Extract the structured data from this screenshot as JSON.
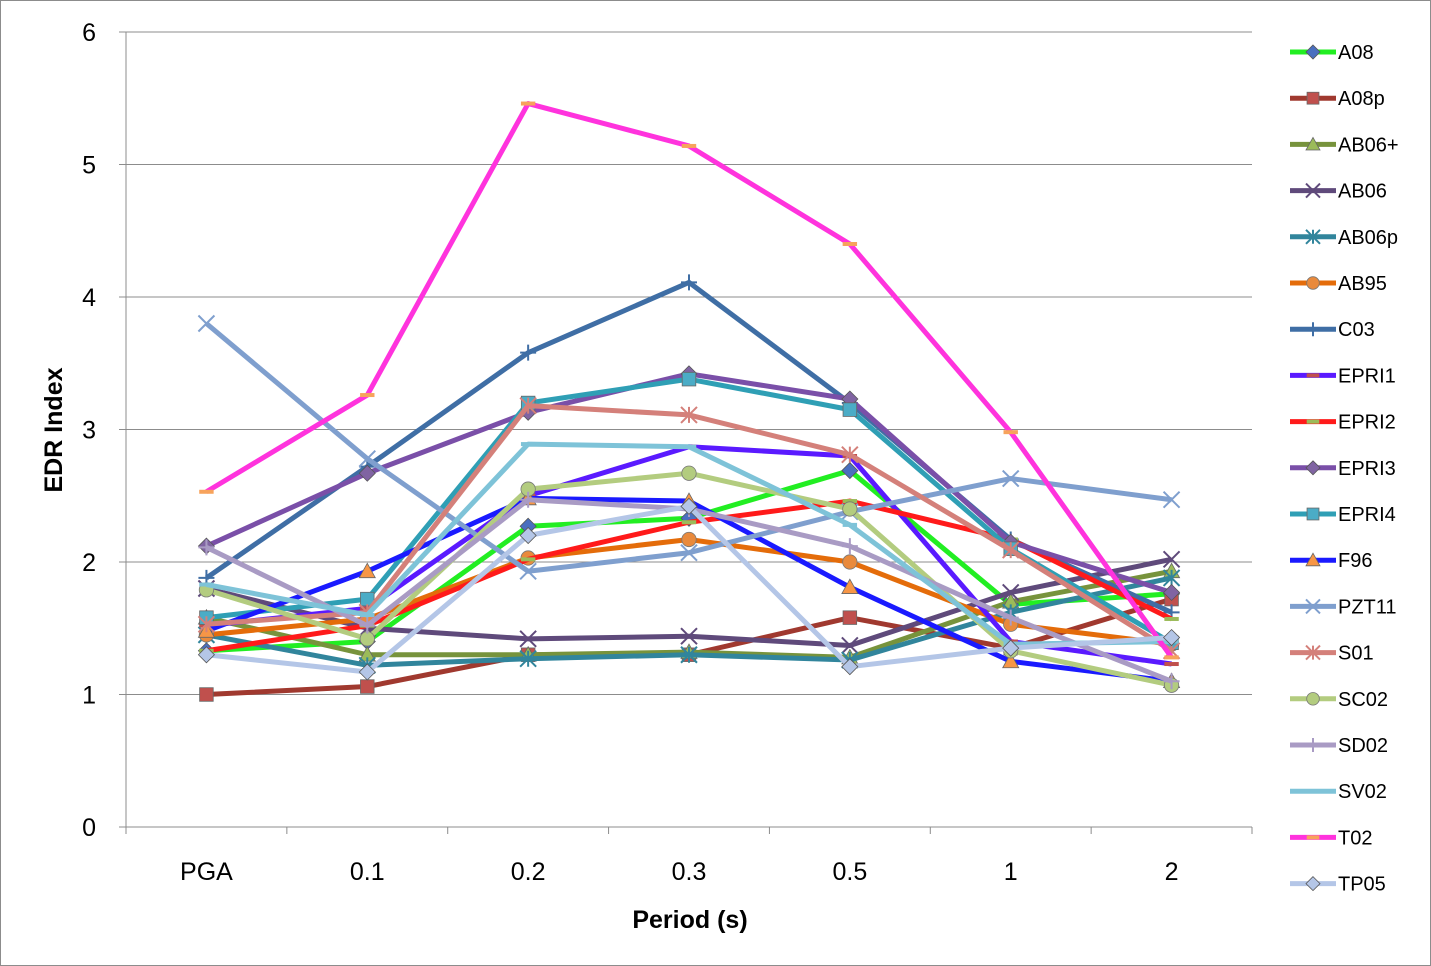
{
  "chart_data": {
    "type": "line",
    "xlabel": "Period (s)",
    "ylabel": "EDR Index",
    "categories": [
      "PGA",
      "0.1",
      "0.2",
      "0.3",
      "0.5",
      "1",
      "2"
    ],
    "ylim": [
      0,
      6
    ],
    "yticks": [
      "0",
      "1",
      "2",
      "3",
      "4",
      "5",
      "6"
    ],
    "grid": "horizontal",
    "legend_position": "right",
    "series": [
      {
        "name": "A08",
        "color": "#22ee22",
        "marker": "diamond",
        "marker_color": "#4a6fbf",
        "values": [
          1.33,
          1.4,
          2.27,
          2.33,
          2.69,
          1.68,
          1.76
        ]
      },
      {
        "name": "A08p",
        "color": "#a0392f",
        "marker": "square",
        "marker_color": "#c0504d",
        "values": [
          1.0,
          1.06,
          1.3,
          1.3,
          1.58,
          1.35,
          1.72
        ]
      },
      {
        "name": "AB06+",
        "color": "#77933c",
        "marker": "triangle",
        "marker_color": "#9bbb59",
        "values": [
          1.58,
          1.3,
          1.3,
          1.32,
          1.28,
          1.7,
          1.93
        ]
      },
      {
        "name": "AB06",
        "color": "#5f4a7b",
        "marker": "x",
        "marker_color": "#5f4a7b",
        "values": [
          1.8,
          1.5,
          1.42,
          1.44,
          1.37,
          1.77,
          2.02
        ]
      },
      {
        "name": "AB06p",
        "color": "#31859c",
        "marker": "asterisk",
        "marker_color": "#31859c",
        "values": [
          1.45,
          1.22,
          1.27,
          1.3,
          1.26,
          1.62,
          1.88
        ]
      },
      {
        "name": "AB95",
        "color": "#e46c0a",
        "marker": "circle",
        "marker_color": "#e98a3c",
        "values": [
          1.45,
          1.57,
          2.03,
          2.17,
          2.0,
          1.53,
          1.38
        ]
      },
      {
        "name": "C03",
        "color": "#3f6ea5",
        "marker": "plus",
        "marker_color": "#3f6ea5",
        "values": [
          1.88,
          2.72,
          3.58,
          4.11,
          3.2,
          2.17,
          1.62
        ]
      },
      {
        "name": "EPRI1",
        "color": "#5a1aff",
        "marker": "dash",
        "marker_color": "#c0504d",
        "values": [
          1.52,
          1.65,
          2.5,
          2.87,
          2.8,
          1.4,
          1.23
        ]
      },
      {
        "name": "EPRI2",
        "color": "#ff1a1a",
        "marker": "dash",
        "marker_color": "#9bbb59",
        "values": [
          1.33,
          1.52,
          2.02,
          2.3,
          2.46,
          2.17,
          1.57
        ]
      },
      {
        "name": "EPRI3",
        "color": "#7a4fa8",
        "marker": "diamond",
        "marker_color": "#8064a2",
        "values": [
          2.12,
          2.67,
          3.13,
          3.42,
          3.23,
          2.15,
          1.77
        ]
      },
      {
        "name": "EPRI4",
        "color": "#2f9fb5",
        "marker": "square",
        "marker_color": "#4bacc6",
        "values": [
          1.58,
          1.72,
          3.2,
          3.38,
          3.15,
          2.1,
          1.39
        ]
      },
      {
        "name": "F96",
        "color": "#1a1aff",
        "marker": "triangle",
        "marker_color": "#f79646",
        "values": [
          1.48,
          1.93,
          2.48,
          2.46,
          1.81,
          1.25,
          1.1
        ]
      },
      {
        "name": "PZT11",
        "color": "#7f9fce",
        "marker": "x",
        "marker_color": "#7f9fce",
        "values": [
          3.8,
          2.78,
          1.93,
          2.07,
          2.38,
          2.63,
          2.47
        ]
      },
      {
        "name": "S01",
        "color": "#d4807a",
        "marker": "asterisk",
        "marker_color": "#d4807a",
        "values": [
          1.53,
          1.62,
          3.18,
          3.11,
          2.81,
          2.09,
          1.33
        ]
      },
      {
        "name": "SC02",
        "color": "#b3cc7f",
        "marker": "circle",
        "marker_color": "#b3cc7f",
        "values": [
          1.79,
          1.42,
          2.55,
          2.67,
          2.4,
          1.33,
          1.07
        ]
      },
      {
        "name": "SD02",
        "color": "#a99bc4",
        "marker": "plus",
        "marker_color": "#a99bc4",
        "values": [
          2.11,
          1.52,
          2.47,
          2.4,
          2.12,
          1.58,
          1.1
        ]
      },
      {
        "name": "SV02",
        "color": "#7ec3d8",
        "marker": "dash",
        "marker_color": "#7ec3d8",
        "values": [
          1.83,
          1.6,
          2.89,
          2.87,
          2.28,
          1.38,
          1.4
        ]
      },
      {
        "name": "T02",
        "color": "#ff33dd",
        "marker": "dash",
        "marker_color": "#f7a35c",
        "values": [
          2.53,
          3.26,
          5.46,
          5.14,
          4.4,
          2.98,
          1.28
        ]
      },
      {
        "name": "TP05",
        "color": "#b4c6e7",
        "marker": "diamond",
        "marker_color": "#b4c6e7",
        "values": [
          1.3,
          1.17,
          2.2,
          2.42,
          1.21,
          1.35,
          1.43
        ]
      }
    ]
  }
}
